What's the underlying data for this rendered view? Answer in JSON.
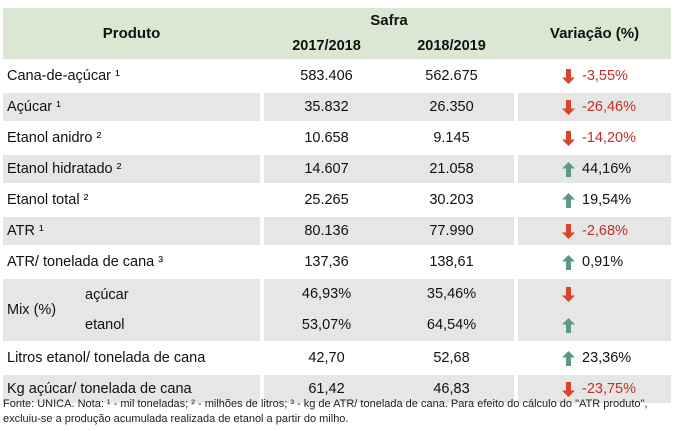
{
  "header": {
    "produto": "Produto",
    "safra": "Safra",
    "year1": "2017/2018",
    "year2": "2018/2019",
    "variacao": "Variação (%)"
  },
  "rows": [
    {
      "label": "Cana-de-açúcar ¹",
      "v1": "583.406",
      "v2": "562.675",
      "var": "-3,55%",
      "dir": "down"
    },
    {
      "label": "Açúcar ¹",
      "v1": "35.832",
      "v2": "26.350",
      "var": "-26,46%",
      "dir": "down"
    },
    {
      "label": "Etanol anidro ²",
      "v1": "10.658",
      "v2": "9.145",
      "var": "-14,20%",
      "dir": "down"
    },
    {
      "label": "Etanol hidratado ²",
      "v1": "14.607",
      "v2": "21.058",
      "var": "44,16%",
      "dir": "up"
    },
    {
      "label": "Etanol total ²",
      "v1": "25.265",
      "v2": "30.203",
      "var": "19,54%",
      "dir": "up"
    },
    {
      "label": "ATR ¹",
      "v1": "80.136",
      "v2": "77.990",
      "var": "-2,68%",
      "dir": "down"
    },
    {
      "label": "ATR/ tonelada de cana ³",
      "v1": "137,36",
      "v2": "138,61",
      "var": "0,91%",
      "dir": "up"
    }
  ],
  "mix": {
    "label": "Mix (%)",
    "sub1": "açúcar",
    "sub2": "etanol",
    "a1": "46,93%",
    "a2": "35,46%",
    "e1": "53,07%",
    "e2": "64,54%",
    "dir1": "down",
    "dir2": "up"
  },
  "rows2": [
    {
      "label": "Litros etanol/ tonelada de cana",
      "v1": "42,70",
      "v2": "52,68",
      "var": "23,36%",
      "dir": "up"
    },
    {
      "label": "Kg açúcar/ tonelada de cana",
      "v1": "61,42",
      "v2": "46,83",
      "var": "-23,75%",
      "dir": "down"
    }
  ],
  "footnote": "Fonte: UNICA. Nota: ¹ - mil toneladas; ² - milhões de litros; ³ - kg de ATR/ tonelada de cana. Para efeito do cálculo do \"ATR produto\", excluiu-se a produção acumulada realizada de etanol a partir do milho.",
  "colors": {
    "header_bg": "#d9e7d3",
    "row_alt_bg": "#e6e6e6",
    "down_arrow": "#d9442c",
    "up_arrow": "#5c9a86",
    "negative_text": "#c0302a"
  },
  "icons": {
    "down": "arrow-down-icon",
    "up": "arrow-up-icon"
  }
}
